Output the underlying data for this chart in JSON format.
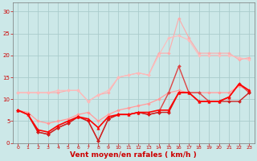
{
  "x": [
    0,
    1,
    2,
    3,
    4,
    5,
    6,
    7,
    8,
    9,
    10,
    11,
    12,
    13,
    14,
    15,
    16,
    17,
    18,
    19,
    20,
    21,
    22,
    23
  ],
  "series": [
    {
      "color": "#ffaaaa",
      "lw": 0.8,
      "marker": "D",
      "ms": 1.8,
      "y": [
        11.5,
        11.5,
        11.5,
        11.5,
        11.5,
        12.0,
        12.0,
        9.5,
        11.0,
        11.5,
        15.0,
        15.5,
        16.0,
        15.5,
        20.5,
        20.5,
        28.5,
        24.0,
        20.5,
        20.5,
        20.5,
        20.5,
        19.0,
        19.5
      ]
    },
    {
      "color": "#ffbbbb",
      "lw": 0.8,
      "marker": "D",
      "ms": 1.8,
      "y": [
        11.5,
        11.5,
        11.5,
        11.5,
        12.0,
        12.0,
        12.0,
        9.5,
        11.0,
        12.0,
        15.0,
        15.5,
        16.0,
        15.5,
        20.0,
        24.0,
        24.5,
        23.5,
        20.0,
        20.0,
        20.0,
        20.0,
        19.5,
        19.0
      ]
    },
    {
      "color": "#ffcccc",
      "lw": 0.8,
      "marker": "D",
      "ms": 1.8,
      "y": [
        7.5,
        7.0,
        5.0,
        4.5,
        5.0,
        5.5,
        6.5,
        7.0,
        5.0,
        6.5,
        7.5,
        8.0,
        8.5,
        9.0,
        10.0,
        11.5,
        11.5,
        11.5,
        11.5,
        11.5,
        11.5,
        11.5,
        13.5,
        12.0
      ]
    },
    {
      "color": "#ff9999",
      "lw": 0.8,
      "marker": "D",
      "ms": 1.8,
      "y": [
        7.5,
        7.0,
        5.0,
        4.5,
        5.0,
        5.5,
        6.5,
        7.0,
        5.0,
        6.5,
        7.5,
        8.0,
        8.5,
        9.0,
        10.0,
        11.5,
        12.0,
        11.5,
        11.5,
        11.5,
        11.5,
        11.5,
        13.0,
        12.0
      ]
    },
    {
      "color": "#dd4444",
      "lw": 1.0,
      "marker": "D",
      "ms": 2.0,
      "y": [
        7.5,
        6.5,
        2.5,
        2.0,
        3.5,
        4.5,
        6.0,
        5.0,
        0.5,
        5.5,
        6.5,
        6.5,
        7.0,
        6.5,
        7.0,
        11.5,
        17.5,
        11.5,
        11.5,
        9.5,
        9.5,
        10.5,
        13.5,
        11.5
      ]
    },
    {
      "color": "#cc2222",
      "lw": 1.0,
      "marker": "D",
      "ms": 2.0,
      "y": [
        7.5,
        6.5,
        2.5,
        2.0,
        3.5,
        4.5,
        6.0,
        5.0,
        0.5,
        5.5,
        6.5,
        6.5,
        7.0,
        6.5,
        7.0,
        7.0,
        11.5,
        11.5,
        9.5,
        9.5,
        9.5,
        9.5,
        9.5,
        11.5
      ]
    },
    {
      "color": "#ff0000",
      "lw": 1.2,
      "marker": "^",
      "ms": 2.5,
      "y": [
        7.5,
        6.5,
        3.0,
        2.5,
        4.0,
        5.0,
        6.0,
        5.5,
        3.5,
        6.0,
        6.5,
        6.5,
        7.0,
        7.0,
        7.5,
        7.5,
        11.5,
        11.5,
        9.5,
        9.5,
        9.5,
        10.5,
        13.5,
        12.0
      ]
    }
  ],
  "xlabel": "Vent moyen/en rafales ( km/h )",
  "xlim": [
    -0.5,
    23.5
  ],
  "ylim": [
    0,
    32
  ],
  "yticks": [
    0,
    5,
    10,
    15,
    20,
    25,
    30
  ],
  "xticks": [
    0,
    1,
    2,
    3,
    4,
    5,
    6,
    7,
    8,
    9,
    10,
    11,
    12,
    13,
    14,
    15,
    16,
    17,
    18,
    19,
    20,
    21,
    22,
    23
  ],
  "bg_color": "#cce8e8",
  "grid_color": "#aacccc",
  "tick_color": "#cc0000",
  "label_color": "#cc0000"
}
